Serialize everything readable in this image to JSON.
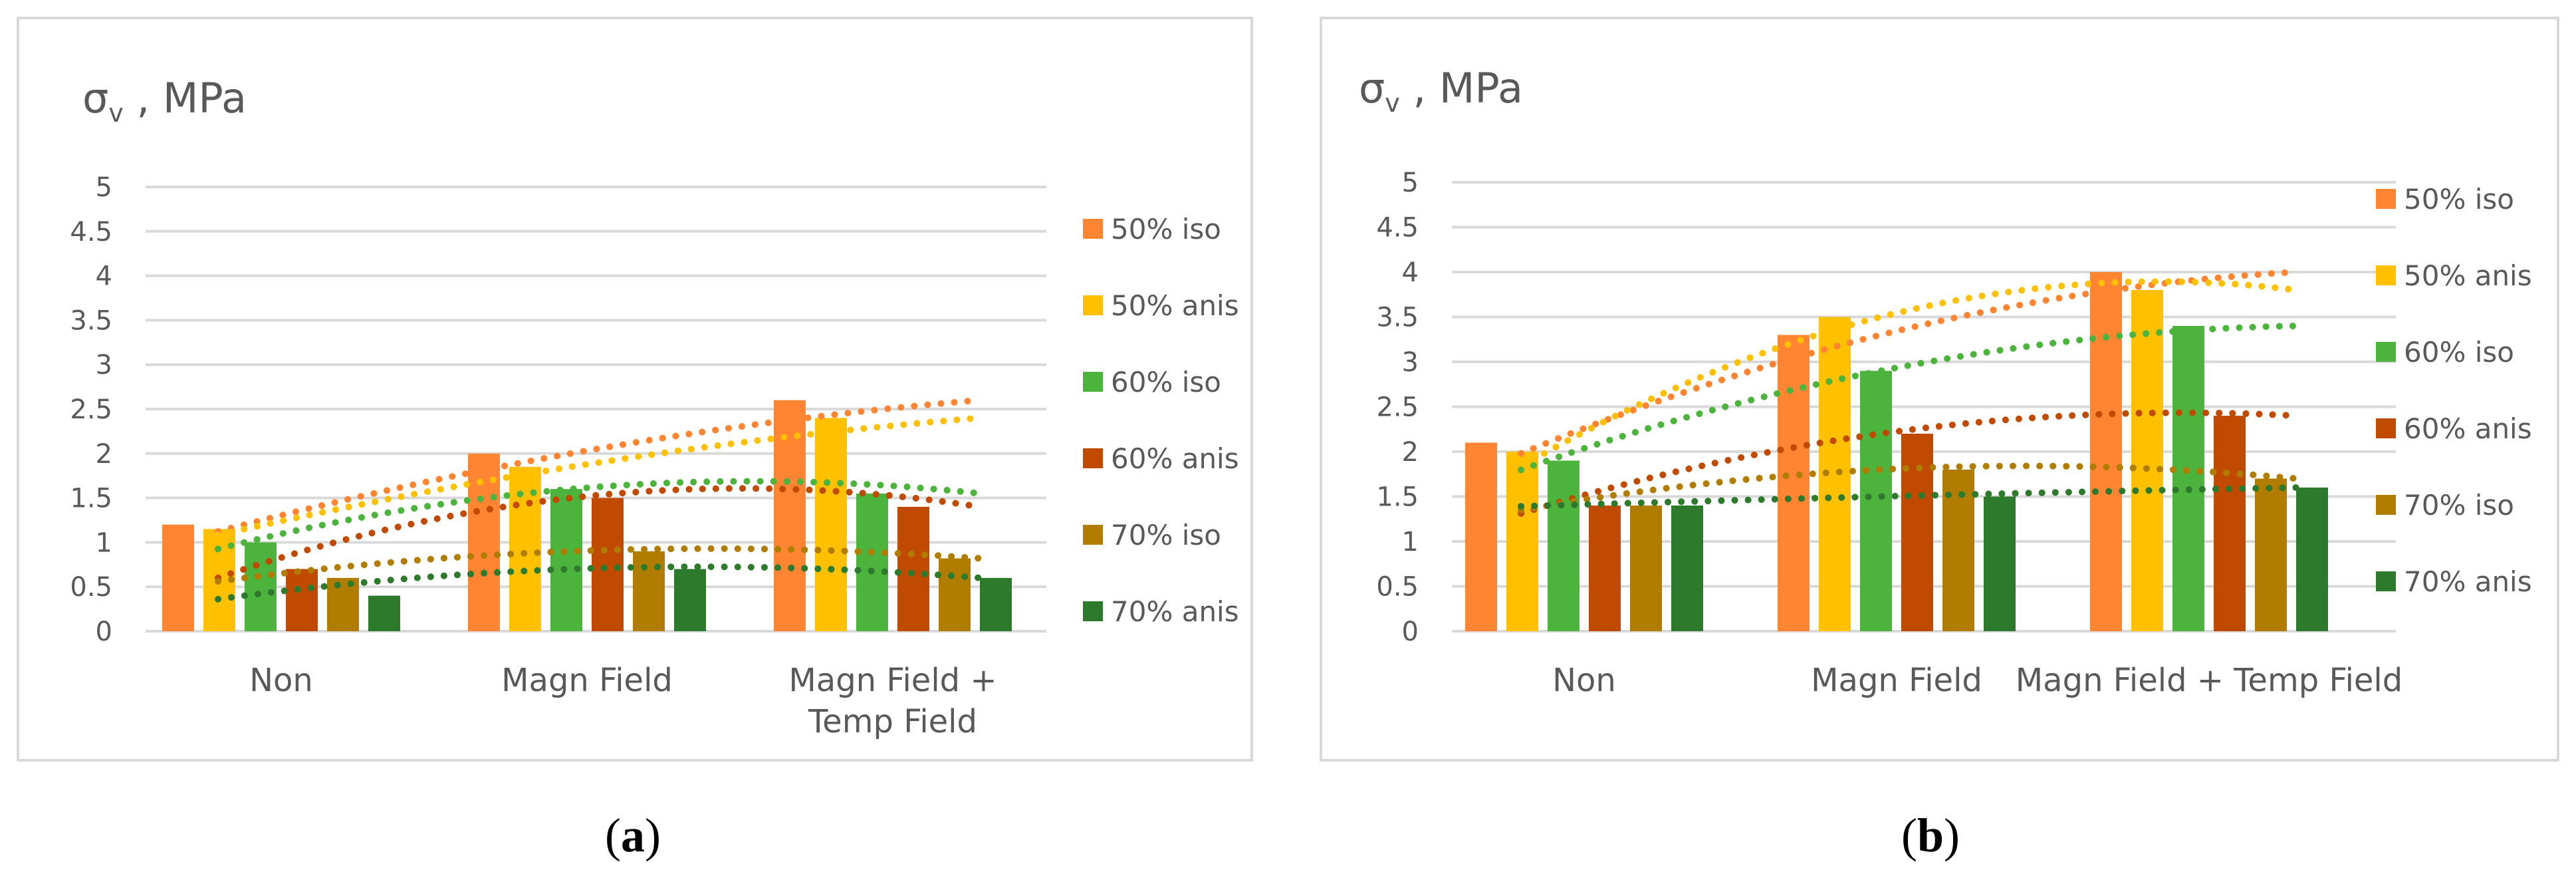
{
  "chart_data": [
    {
      "panel": "a",
      "type": "bar",
      "title": "σv , MPa",
      "title_main": "σ",
      "title_sub": "v",
      "title_rest": " , MPa",
      "ylim": [
        0,
        5
      ],
      "yticks": [
        "0",
        "0.5",
        "1",
        "1.5",
        "2",
        "2.5",
        "3",
        "3.5",
        "4",
        "4.5",
        "5"
      ],
      "categories": [
        [
          "Non"
        ],
        [
          "Magn Field"
        ],
        [
          "Magn Field +",
          "Temp Field"
        ]
      ],
      "grid": true,
      "legend": "right",
      "trendlines": "dotted",
      "series": [
        {
          "name": "50% iso",
          "color": "#ff8533",
          "values": [
            1.2,
            2.0,
            2.6
          ]
        },
        {
          "name": "50% anis",
          "color": "#ffc000",
          "values": [
            1.15,
            1.85,
            2.4
          ]
        },
        {
          "name": "60% iso",
          "color": "#4cb33c",
          "values": [
            1.0,
            1.6,
            1.55
          ]
        },
        {
          "name": "60% anis",
          "color": "#c04a00",
          "values": [
            0.7,
            1.5,
            1.4
          ]
        },
        {
          "name": "70% iso",
          "color": "#b07d00",
          "values": [
            0.6,
            0.9,
            0.82
          ]
        },
        {
          "name": "70% anis",
          "color": "#2d7a2d",
          "values": [
            0.4,
            0.7,
            0.6
          ]
        }
      ]
    },
    {
      "panel": "b",
      "type": "bar",
      "title": "σv , MPa",
      "title_main": "σ",
      "title_sub": "v",
      "title_rest": " , MPa",
      "ylim": [
        0,
        5
      ],
      "yticks": [
        "0",
        "0.5",
        "1",
        "1.5",
        "2",
        "2.5",
        "3",
        "3.5",
        "4",
        "4.5",
        "5"
      ],
      "categories": [
        [
          "Non"
        ],
        [
          "Magn Field"
        ],
        [
          "Magn Field + Temp Field"
        ]
      ],
      "grid": true,
      "legend": "right",
      "trendlines": "dotted",
      "series": [
        {
          "name": "50% iso",
          "color": "#ff8533",
          "values": [
            2.1,
            3.3,
            4.0
          ]
        },
        {
          "name": "50% anis",
          "color": "#ffc000",
          "values": [
            2.0,
            3.5,
            3.8
          ]
        },
        {
          "name": "60% iso",
          "color": "#4cb33c",
          "values": [
            1.9,
            2.9,
            3.4
          ]
        },
        {
          "name": "60% anis",
          "color": "#c04a00",
          "values": [
            1.4,
            2.2,
            2.4
          ]
        },
        {
          "name": "70% iso",
          "color": "#b07d00",
          "values": [
            1.4,
            1.8,
            1.7
          ]
        },
        {
          "name": "70% anis",
          "color": "#2d7a2d",
          "values": [
            1.4,
            1.5,
            1.6
          ]
        }
      ]
    }
  ],
  "labels": {
    "a": {
      "open": "(",
      "letter": "a",
      "close": ")"
    },
    "b": {
      "open": "(",
      "letter": "b",
      "close": ")"
    }
  }
}
